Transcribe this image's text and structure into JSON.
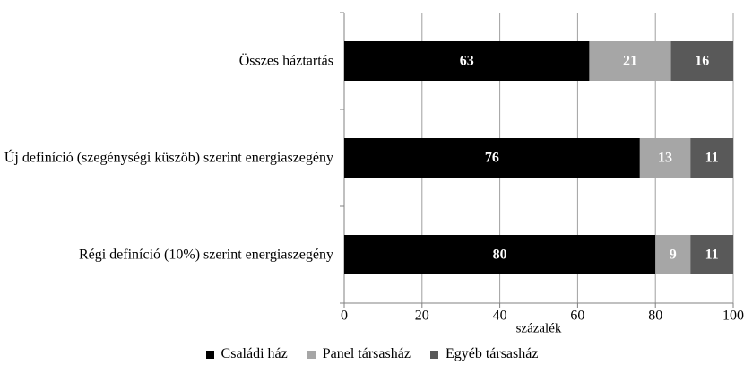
{
  "chart_data": {
    "type": "stacked-barh",
    "categories": [
      "Összes háztartás",
      "Új definíció (szegénységi küszöb) szerint energiaszegény",
      "Régi definíció (10%) szerint energiaszegény"
    ],
    "series": [
      {
        "name": "Családi ház",
        "color": "#000000",
        "values": [
          63,
          76,
          80
        ]
      },
      {
        "name": "Panel társasház",
        "color": "#a6a6a6",
        "values": [
          21,
          13,
          9
        ]
      },
      {
        "name": "Egyéb társasház",
        "color": "#595959",
        "values": [
          16,
          11,
          11
        ]
      }
    ],
    "xlabel": "százalék",
    "xlim": [
      0,
      100
    ],
    "xticks": [
      0,
      20,
      40,
      60,
      80,
      100
    ],
    "grid": true,
    "legend": "bottom"
  }
}
